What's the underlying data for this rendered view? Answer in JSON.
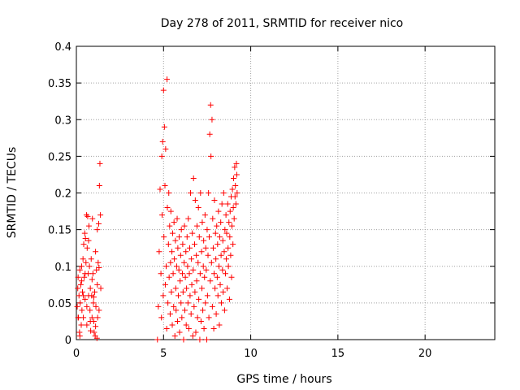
{
  "chart_data": {
    "type": "scatter",
    "title": "Day 278 of 2011, SRMTID for receiver nico",
    "xlabel": "GPS time / hours",
    "ylabel": "SRMTID / TECUs",
    "xlim": [
      0,
      24
    ],
    "ylim": [
      0,
      0.4
    ],
    "x_ticks": [
      "0",
      "5",
      "10",
      "15",
      "20"
    ],
    "x_tick_values": [
      0,
      5,
      10,
      15,
      20
    ],
    "y_ticks": [
      "0",
      "0.05",
      "0.1",
      "0.15",
      "0.2",
      "0.25",
      "0.3",
      "0.35",
      "0.4"
    ],
    "y_tick_values": [
      0,
      0.05,
      0.1,
      0.15,
      0.2,
      0.25,
      0.3,
      0.35,
      0.4
    ],
    "grid": true,
    "marker": "+",
    "series": [
      {
        "name": "SRMTID",
        "color": "#ff0000",
        "points": [
          [
            0.05,
            0.045
          ],
          [
            0.08,
            0.07
          ],
          [
            0.1,
            0.085
          ],
          [
            0.12,
            0.03
          ],
          [
            0.15,
            0.06
          ],
          [
            0.18,
            0.01
          ],
          [
            0.2,
            0.095
          ],
          [
            0.22,
            0.05
          ],
          [
            0.25,
            0.075
          ],
          [
            0.28,
            0.02
          ],
          [
            0.3,
            0.1
          ],
          [
            0.32,
            0.04
          ],
          [
            0.35,
            0.065
          ],
          [
            0.38,
            0.11
          ],
          [
            0.4,
            0.03
          ],
          [
            0.42,
            0.13
          ],
          [
            0.45,
            0.085
          ],
          [
            0.48,
            0.145
          ],
          [
            0.5,
            0.055
          ],
          [
            0.52,
            0.138
          ],
          [
            0.55,
            0.105
          ],
          [
            0.58,
            0.17
          ],
          [
            0.6,
            0.02
          ],
          [
            0.62,
            0.125
          ],
          [
            0.65,
            0.168
          ],
          [
            0.68,
            0.09
          ],
          [
            0.7,
            0.06
          ],
          [
            0.72,
            0.155
          ],
          [
            0.75,
            0.1
          ],
          [
            0.78,
            0.04
          ],
          [
            0.8,
            0.07
          ],
          [
            0.82,
            0.012
          ],
          [
            0.85,
            0.11
          ],
          [
            0.88,
            0.06
          ],
          [
            0.9,
            0.03
          ],
          [
            0.92,
            0.165
          ],
          [
            0.95,
            0.09
          ],
          [
            0.98,
            0.05
          ],
          [
            1.0,
            0.025
          ],
          [
            1.02,
            0.01
          ],
          [
            1.05,
            0.065
          ],
          [
            1.08,
            0.005
          ],
          [
            1.1,
            0.12
          ],
          [
            1.12,
            0.045
          ],
          [
            1.15,
            0.095
          ],
          [
            1.18,
            0.002
          ],
          [
            1.2,
            0.075
          ],
          [
            1.22,
            0.03
          ],
          [
            1.25,
            0.105
          ],
          [
            1.28,
            0.158
          ],
          [
            1.3,
            0.04
          ],
          [
            1.32,
            0.21
          ],
          [
            1.35,
            0.24
          ],
          [
            1.38,
            0.17
          ],
          [
            1.4,
            0.07
          ],
          [
            0.1,
            0.03
          ],
          [
            0.2,
            0.005
          ],
          [
            0.3,
            0.08
          ],
          [
            0.4,
            0.06
          ],
          [
            0.5,
            0.09
          ],
          [
            0.6,
            0.045
          ],
          [
            0.7,
            0.135
          ],
          [
            0.8,
            0.025
          ],
          [
            0.9,
            0.082
          ],
          [
            1.0,
            0.058
          ],
          [
            1.1,
            0.018
          ],
          [
            1.2,
            0.15
          ],
          [
            1.3,
            0.098
          ],
          [
            4.65,
            0.0
          ],
          [
            4.7,
            0.045
          ],
          [
            4.75,
            0.12
          ],
          [
            4.8,
            0.205
          ],
          [
            4.85,
            0.09
          ],
          [
            4.88,
            0.03
          ],
          [
            4.9,
            0.25
          ],
          [
            4.92,
            0.17
          ],
          [
            4.95,
            0.27
          ],
          [
            4.98,
            0.06
          ],
          [
            5.0,
            0.34
          ],
          [
            5.02,
            0.14
          ],
          [
            5.05,
            0.29
          ],
          [
            5.08,
            0.21
          ],
          [
            5.1,
            0.075
          ],
          [
            5.12,
            0.26
          ],
          [
            5.15,
            0.1
          ],
          [
            5.18,
            0.015
          ],
          [
            5.2,
            0.355
          ],
          [
            5.22,
            0.18
          ],
          [
            5.25,
            0.05
          ],
          [
            5.28,
            0.13
          ],
          [
            5.3,
            0.2
          ],
          [
            5.32,
            0.085
          ],
          [
            5.35,
            0.155
          ],
          [
            5.38,
            0.035
          ],
          [
            5.4,
            0.105
          ],
          [
            5.42,
            0.175
          ],
          [
            5.45,
            0.065
          ],
          [
            5.48,
            0.12
          ],
          [
            5.5,
            0.02
          ],
          [
            5.52,
            0.145
          ],
          [
            5.55,
            0.09
          ],
          [
            5.58,
            0.045
          ],
          [
            5.6,
            0.16
          ],
          [
            5.62,
            0.11
          ],
          [
            5.65,
            0.005
          ],
          [
            5.68,
            0.135
          ],
          [
            5.7,
            0.07
          ],
          [
            5.72,
            0.04
          ],
          [
            5.75,
            0.1
          ],
          [
            5.78,
            0.165
          ],
          [
            5.8,
            0.025
          ],
          [
            5.82,
            0.125
          ],
          [
            5.85,
            0.06
          ],
          [
            5.88,
            0.095
          ],
          [
            5.9,
            0.14
          ],
          [
            5.92,
            0.01
          ],
          [
            5.95,
            0.08
          ],
          [
            5.98,
            0.115
          ],
          [
            6.0,
            0.05
          ],
          [
            6.02,
            0.15
          ],
          [
            6.05,
            0.03
          ],
          [
            6.08,
            0.09
          ],
          [
            6.1,
            0.13
          ],
          [
            6.12,
            0.065
          ],
          [
            6.15,
            0.0
          ],
          [
            6.18,
            0.105
          ],
          [
            6.2,
            0.155
          ],
          [
            6.22,
            0.04
          ],
          [
            6.25,
            0.085
          ],
          [
            6.28,
            0.12
          ],
          [
            6.3,
            0.02
          ],
          [
            6.32,
            0.07
          ],
          [
            6.35,
            0.14
          ],
          [
            6.38,
            0.1
          ],
          [
            6.4,
            0.05
          ],
          [
            6.42,
            0.165
          ],
          [
            6.45,
            0.015
          ],
          [
            6.48,
            0.09
          ],
          [
            6.5,
            0.125
          ],
          [
            6.52,
            0.06
          ],
          [
            6.55,
            0.2
          ],
          [
            6.58,
            0.035
          ],
          [
            6.6,
            0.11
          ],
          [
            6.62,
            0.075
          ],
          [
            6.65,
            0.145
          ],
          [
            6.68,
            0.005
          ],
          [
            6.7,
            0.095
          ],
          [
            6.72,
            0.22
          ],
          [
            6.75,
            0.045
          ],
          [
            6.78,
            0.13
          ],
          [
            6.8,
            0.065
          ],
          [
            6.82,
            0.19
          ],
          [
            6.85,
            0.01
          ],
          [
            6.88,
            0.115
          ],
          [
            6.9,
            0.08
          ],
          [
            6.92,
            0.155
          ],
          [
            6.95,
            0.03
          ],
          [
            6.98,
            0.105
          ],
          [
            7.0,
            0.18
          ],
          [
            7.02,
            0.055
          ],
          [
            7.05,
            0.14
          ],
          [
            7.08,
            0.0
          ],
          [
            7.1,
            0.09
          ],
          [
            7.12,
            0.2
          ],
          [
            7.15,
            0.025
          ],
          [
            7.18,
            0.12
          ],
          [
            7.2,
            0.07
          ],
          [
            7.22,
            0.16
          ],
          [
            7.25,
            0.04
          ],
          [
            7.28,
            0.1
          ],
          [
            7.3,
            0.135
          ],
          [
            7.32,
            0.015
          ],
          [
            7.35,
            0.085
          ],
          [
            7.38,
            0.17
          ],
          [
            7.4,
            0.05
          ],
          [
            7.42,
            0.125
          ],
          [
            7.45,
            0.095
          ],
          [
            7.48,
            0.0
          ],
          [
            7.5,
            0.15
          ],
          [
            7.52,
            0.06
          ],
          [
            7.55,
            0.115
          ],
          [
            7.58,
            0.2
          ],
          [
            7.6,
            0.03
          ],
          [
            7.62,
            0.14
          ],
          [
            7.65,
            0.28
          ],
          [
            7.68,
            0.08
          ],
          [
            7.7,
            0.32
          ],
          [
            7.72,
            0.25
          ],
          [
            7.75,
            0.105
          ],
          [
            7.78,
            0.3
          ],
          [
            7.8,
            0.045
          ],
          [
            7.82,
            0.165
          ],
          [
            7.85,
            0.125
          ],
          [
            7.88,
            0.015
          ],
          [
            7.9,
            0.09
          ],
          [
            7.92,
            0.19
          ],
          [
            7.95,
            0.07
          ],
          [
            7.98,
            0.145
          ],
          [
            8.0,
            0.11
          ],
          [
            8.02,
            0.035
          ],
          [
            8.05,
            0.155
          ],
          [
            8.08,
            0.085
          ],
          [
            8.1,
            0.13
          ],
          [
            8.12,
            0.06
          ],
          [
            8.15,
            0.175
          ],
          [
            8.18,
            0.1
          ],
          [
            8.2,
            0.02
          ],
          [
            8.22,
            0.14
          ],
          [
            8.25,
            0.075
          ],
          [
            8.28,
            0.16
          ],
          [
            8.3,
            0.115
          ],
          [
            8.32,
            0.05
          ],
          [
            8.35,
            0.185
          ],
          [
            8.38,
            0.095
          ],
          [
            8.4,
            0.135
          ],
          [
            8.42,
            0.065
          ],
          [
            8.45,
            0.2
          ],
          [
            8.48,
            0.12
          ],
          [
            8.5,
            0.04
          ],
          [
            8.52,
            0.15
          ],
          [
            8.55,
            0.09
          ],
          [
            8.58,
            0.17
          ],
          [
            8.6,
            0.11
          ],
          [
            8.62,
            0.145
          ],
          [
            8.65,
            0.07
          ],
          [
            8.68,
            0.185
          ],
          [
            8.7,
            0.125
          ],
          [
            8.72,
            0.1
          ],
          [
            8.75,
            0.16
          ],
          [
            8.78,
            0.055
          ],
          [
            8.8,
            0.14
          ],
          [
            8.82,
            0.175
          ],
          [
            8.85,
            0.115
          ],
          [
            8.88,
            0.195
          ],
          [
            8.9,
            0.085
          ],
          [
            8.92,
            0.155
          ],
          [
            8.95,
            0.205
          ],
          [
            8.98,
            0.13
          ],
          [
            9.0,
            0.18
          ],
          [
            9.02,
            0.22
          ],
          [
            9.05,
            0.165
          ],
          [
            9.08,
            0.235
          ],
          [
            9.1,
            0.195
          ],
          [
            9.12,
            0.21
          ],
          [
            9.15,
            0.185
          ],
          [
            9.18,
            0.24
          ],
          [
            9.2,
            0.225
          ],
          [
            9.22,
            0.2
          ]
        ]
      }
    ]
  }
}
